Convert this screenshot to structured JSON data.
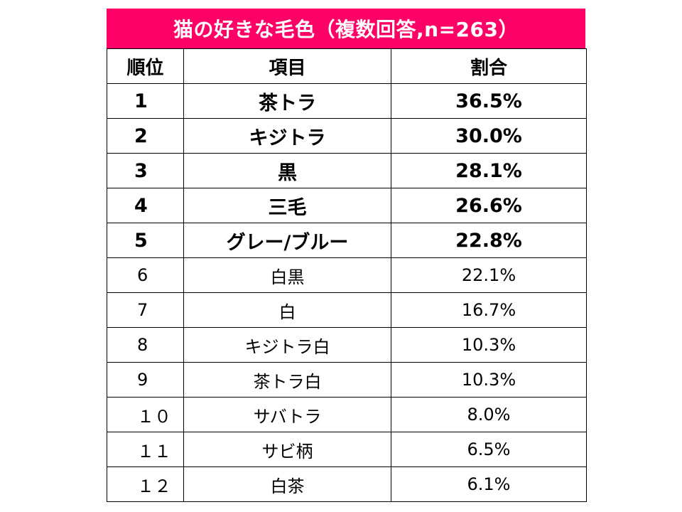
{
  "chart_data": {
    "type": "table",
    "title": "猫の好きな毛色（複数回答,n=263）",
    "columns": [
      "順位",
      "項目",
      "割合"
    ],
    "rows": [
      {
        "rank": "1",
        "item": "茶トラ",
        "ratio": "36.5%",
        "value": 36.5,
        "highlight": true
      },
      {
        "rank": "2",
        "item": "キジトラ",
        "ratio": "30.0%",
        "value": 30.0,
        "highlight": true
      },
      {
        "rank": "3",
        "item": "黒",
        "ratio": "28.1%",
        "value": 28.1,
        "highlight": true
      },
      {
        "rank": "4",
        "item": "三毛",
        "ratio": "26.6%",
        "value": 26.6,
        "highlight": true
      },
      {
        "rank": "5",
        "item": "グレー/ブルー",
        "ratio": "22.8%",
        "value": 22.8,
        "highlight": true
      },
      {
        "rank": "6",
        "item": "白黒",
        "ratio": "22.1%",
        "value": 22.1,
        "highlight": false
      },
      {
        "rank": "7",
        "item": "白",
        "ratio": "16.7%",
        "value": 16.7,
        "highlight": false
      },
      {
        "rank": "8",
        "item": "キジトラ白",
        "ratio": "10.3%",
        "value": 10.3,
        "highlight": false
      },
      {
        "rank": "9",
        "item": "茶トラ白",
        "ratio": "10.3%",
        "value": 10.3,
        "highlight": false
      },
      {
        "rank": "１０",
        "item": "サバトラ",
        "ratio": "8.0%",
        "value": 8.0,
        "highlight": false
      },
      {
        "rank": "１１",
        "item": "サビ柄",
        "ratio": "6.5%",
        "value": 6.5,
        "highlight": false
      },
      {
        "rank": "１２",
        "item": "白茶",
        "ratio": "6.1%",
        "value": 6.1,
        "highlight": false
      }
    ]
  },
  "colors": {
    "title_background": "#ff0066",
    "title_text": "#ffffff",
    "border": "#000000"
  }
}
